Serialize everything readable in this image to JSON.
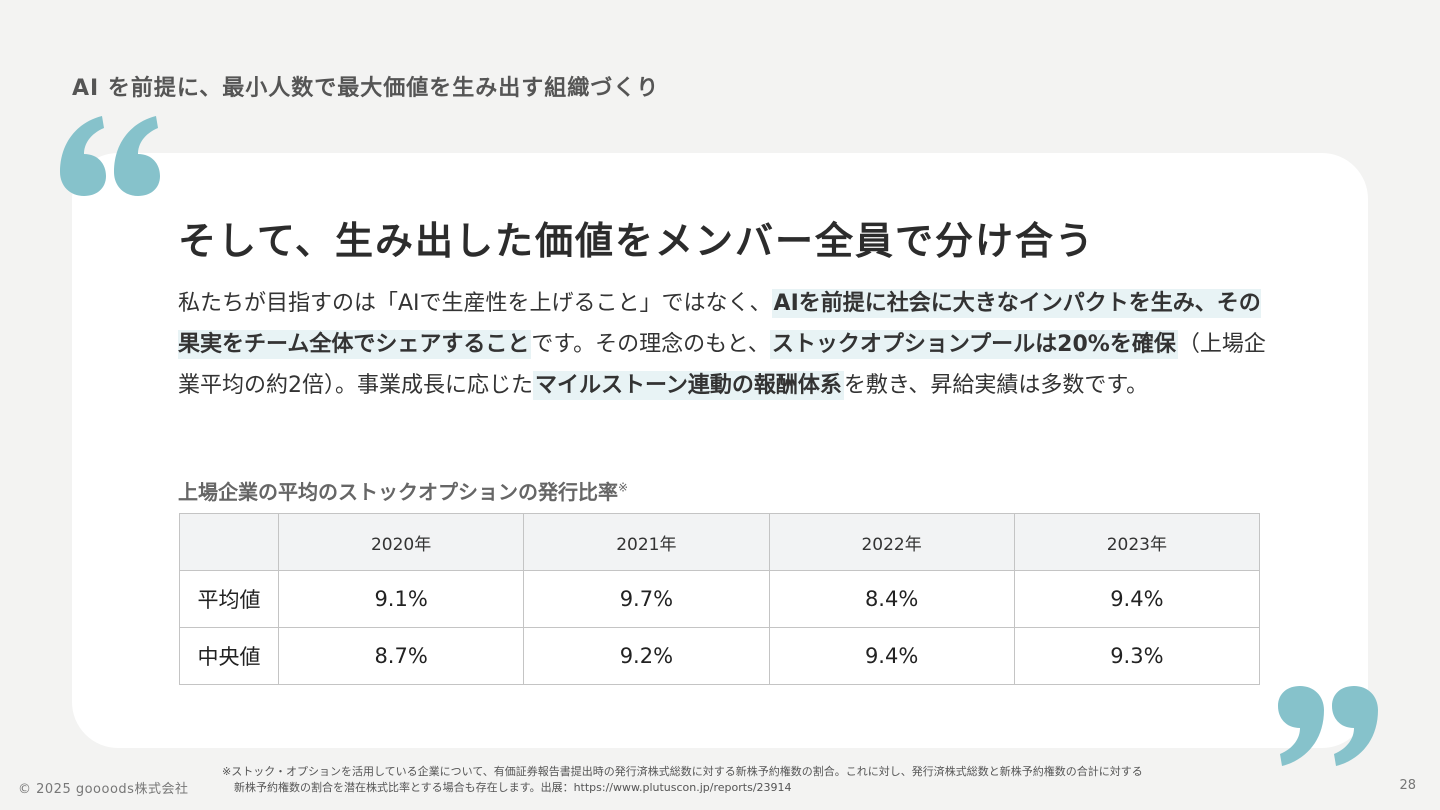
{
  "slide": {
    "heading": "AI を前提に、最小人数で最大価値を生み出す組織づくり",
    "title": "そして、生み出した価値をメンバー全員で分け合う",
    "accent_color": "#86c2cb",
    "body": {
      "t1": "私たちが目指すのは「AIで生産性を上げること」ではなく、",
      "h1": "AIを前提に社会に大きなインパクトを生み、その果実をチーム全体でシェアすること",
      "t2": "です。その理念のもと、",
      "h2": "ストックオプションプールは20%を確保",
      "t3": "（上場企業平均の約2倍）。事業成長に応じた",
      "h3": "マイルストーン連動の報酬体系",
      "t4": "を敷き、昇給実績は多数です。"
    },
    "table_caption": "上場企業の平均のストックオプションの発行比率",
    "table_caption_mark": "※",
    "table": {
      "columns": [
        "",
        "2020年",
        "2021年",
        "2022年",
        "2023年"
      ],
      "rows": [
        {
          "label": "平均値",
          "values": [
            "9.1%",
            "9.7%",
            "8.4%",
            "9.4%"
          ]
        },
        {
          "label": "中央値",
          "values": [
            "8.7%",
            "9.2%",
            "9.4%",
            "9.3%"
          ]
        }
      ]
    },
    "footnote": {
      "line1": "※ストック・オプションを活用している企業について、有価証券報告書提出時の発行済株式総数に対する新株予約権数の割合。これに対し、発行済株式総数と新株予約権数の合計に対する",
      "line2": "新株予約権数の割合を潜在株式比率とする場合も存在します。出展：https://www.plutuscon.jp/reports/23914"
    },
    "copyright": "© 2025 goooods株式会社",
    "page_number": "28"
  }
}
